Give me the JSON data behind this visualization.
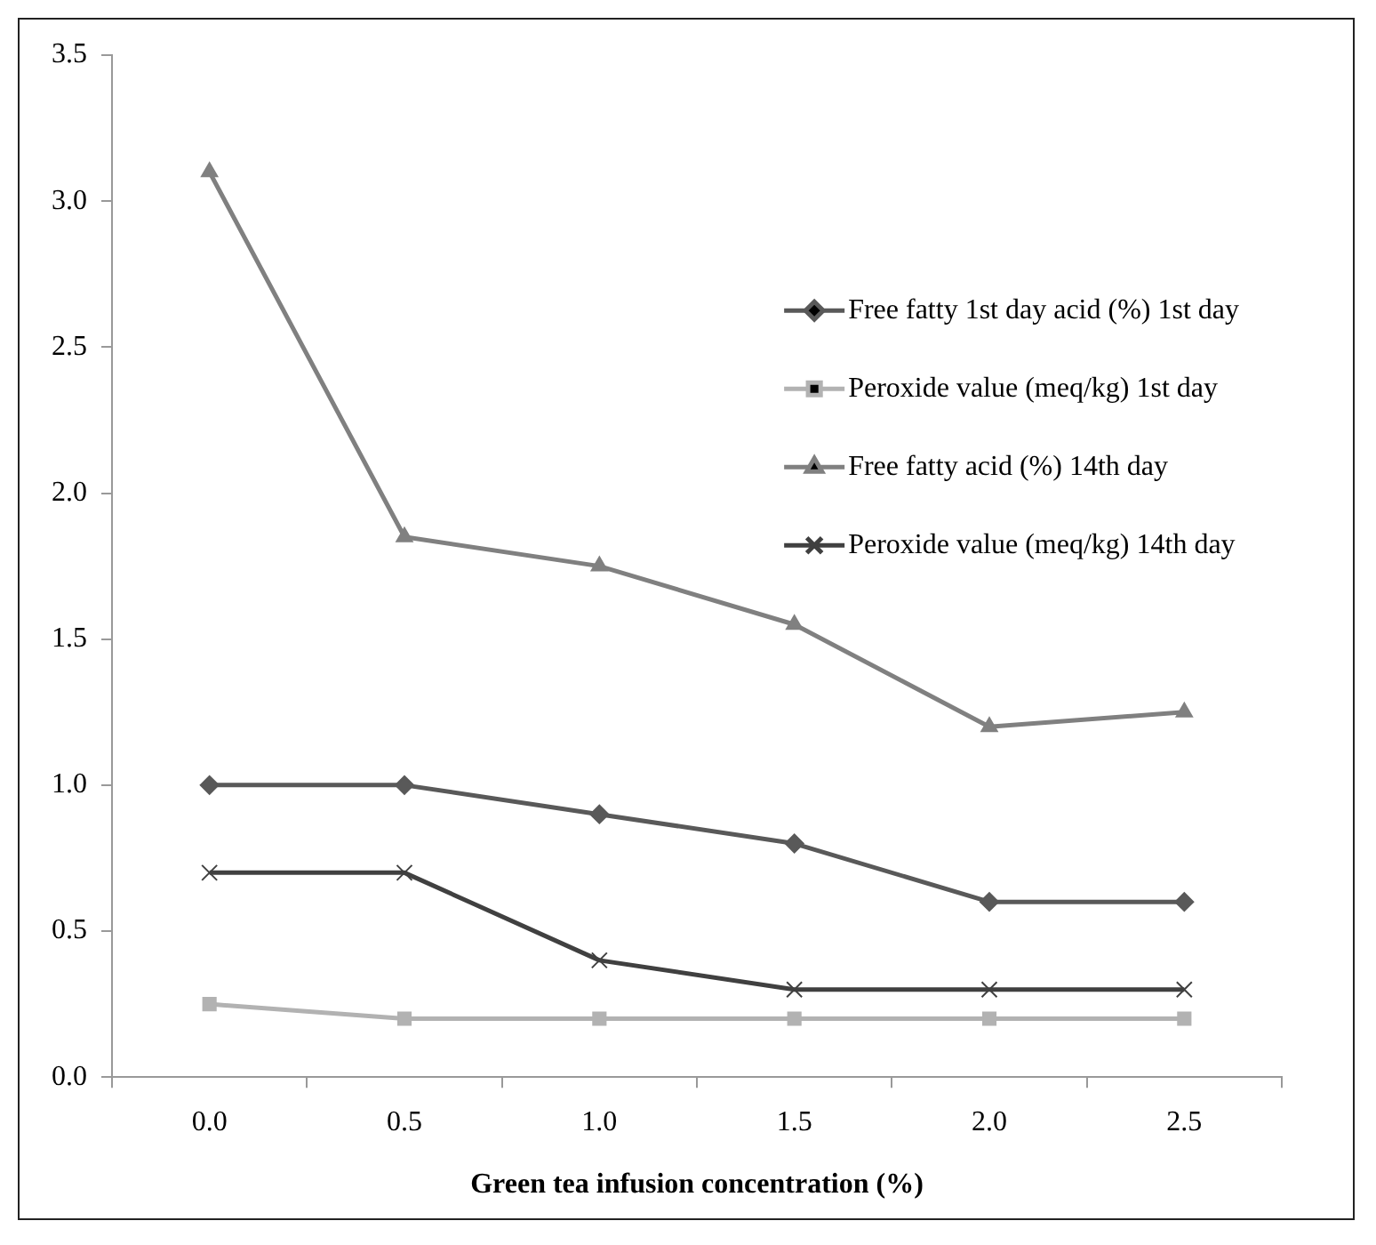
{
  "chart_data": {
    "type": "line",
    "xlabel": "Green tea infusion concentration (%)",
    "categories": [
      "0.0",
      "0.5",
      "1.0",
      "1.5",
      "2.0",
      "2.5"
    ],
    "series": [
      {
        "name": "Free fatty 1st day acid (%) 1st day",
        "color": "#595959",
        "marker": "diamond",
        "values": [
          1.0,
          1.0,
          0.9,
          0.8,
          0.6,
          0.6
        ]
      },
      {
        "name": "Peroxide value (meq/kg) 1st day",
        "color": "#b2b2b2",
        "marker": "square",
        "values": [
          0.25,
          0.2,
          0.2,
          0.2,
          0.2,
          0.2
        ]
      },
      {
        "name": "Free fatty acid (%) 14th day",
        "color": "#808080",
        "marker": "triangle",
        "values": [
          3.1,
          1.85,
          1.75,
          1.55,
          1.2,
          1.25
        ]
      },
      {
        "name": "Peroxide value (meq/kg) 14th day",
        "color": "#404040",
        "marker": "cross",
        "values": [
          0.7,
          0.7,
          0.4,
          0.3,
          0.3,
          0.3
        ]
      }
    ],
    "ylim": [
      0,
      3.5
    ],
    "yticks": [
      {
        "value": 0,
        "label": "0.0"
      },
      {
        "value": 0.5,
        "label": "0.5"
      },
      {
        "value": 1,
        "label": "1.0"
      },
      {
        "value": 1.5,
        "label": "1.5"
      },
      {
        "value": 2,
        "label": "2.0"
      },
      {
        "value": 2.5,
        "label": "2.5"
      },
      {
        "value": 3,
        "label": "3.0"
      },
      {
        "value": 3.5,
        "label": "3.5"
      }
    ],
    "grid": false,
    "legend": "right"
  }
}
